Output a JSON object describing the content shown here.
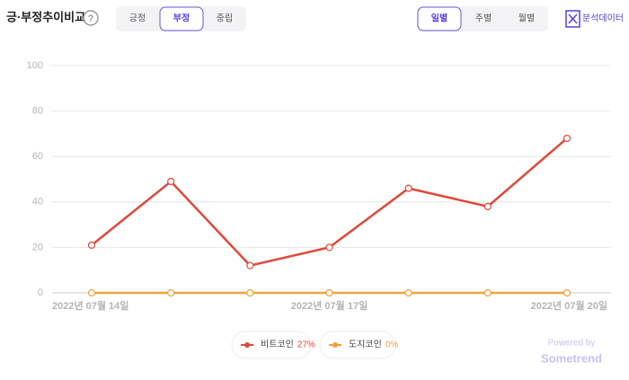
{
  "ui": {
    "title": "긍·부정추이비교",
    "help": "?",
    "sentiment_tabs": [
      "긍정",
      "부정",
      "중립"
    ],
    "period_tabs": [
      "일별",
      "주별",
      "월별"
    ],
    "data_button": "분석데이터",
    "powered_by": "Powered by",
    "brand": "Sometrend"
  },
  "chart_data": {
    "type": "line",
    "categories": [
      "2022년 07월 14일",
      null,
      null,
      "2022년 07월 17일",
      null,
      null,
      "2022년 07월 20일"
    ],
    "series": [
      {
        "name": "비트코인",
        "color": "#e0483a",
        "share": {
          "value": 27,
          "label": "27%"
        },
        "values": [
          21,
          49,
          12,
          20,
          46,
          38,
          68
        ]
      },
      {
        "name": "도지코인",
        "color": "#f0a23a",
        "share": {
          "value": 0,
          "label": "0%"
        },
        "values": [
          0,
          0,
          0,
          0,
          0,
          0,
          0
        ]
      }
    ],
    "ylim": [
      0,
      100
    ],
    "yticks": [
      0,
      20,
      40,
      60,
      80,
      100
    ],
    "grid": true
  }
}
